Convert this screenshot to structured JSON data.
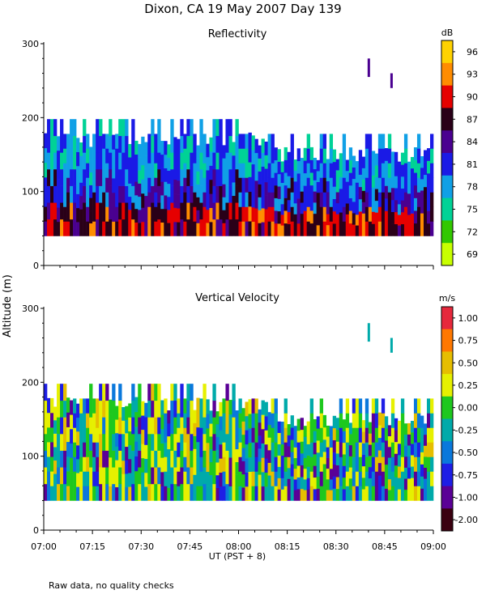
{
  "figure_title": "Dixon, CA 19 May 2007  Day 139",
  "y_axis_label": "Altitude (m)",
  "x_axis_label": "UT   (PST + 8)",
  "footnote": "Raw data, no quality checks",
  "chart_data": [
    {
      "type": "heatmap",
      "title": "Reflectivity",
      "ylabel": "Altitude (m)",
      "xlabel": "UT   (PST + 8)",
      "xlim": [
        "07:00",
        "09:00"
      ],
      "ylim": [
        0,
        300
      ],
      "x_ticks": [
        "07:00",
        "07:15",
        "07:30",
        "07:45",
        "08:00",
        "08:15",
        "08:30",
        "08:45",
        "09:00"
      ],
      "y_ticks": [
        "0",
        "100",
        "200",
        "300"
      ],
      "data_range_altitude_m": [
        40,
        200
      ],
      "colorbar": {
        "unit": "dB",
        "labels": [
          "96",
          "93",
          "90",
          "87",
          "84",
          "81",
          "78",
          "75",
          "72",
          "69"
        ],
        "colors": [
          "#ffd200",
          "#ff8c00",
          "#e60000",
          "#2a0018",
          "#4a0090",
          "#1a1ae6",
          "#10a0e6",
          "#00d296",
          "#32c800",
          "#c8ff00"
        ]
      }
    },
    {
      "type": "heatmap",
      "title": "Vertical Velocity",
      "ylabel": "Altitude (m)",
      "xlabel": "UT   (PST + 8)",
      "xlim": [
        "07:00",
        "09:00"
      ],
      "ylim": [
        0,
        300
      ],
      "x_ticks": [
        "07:00",
        "07:15",
        "07:30",
        "07:45",
        "08:00",
        "08:15",
        "08:30",
        "08:45",
        "09:00"
      ],
      "y_ticks": [
        "0",
        "100",
        "200",
        "300"
      ],
      "data_range_altitude_m": [
        40,
        200
      ],
      "colorbar": {
        "unit": "m/s",
        "labels": [
          "1.00",
          "0.75",
          "0.50",
          "0.25",
          "0.00",
          "-0.25",
          "-0.50",
          "-0.75",
          "-1.00",
          "-2.00"
        ],
        "colors": [
          "#e6283c",
          "#ff7800",
          "#e6be00",
          "#e6f000",
          "#1ec81e",
          "#00aaaa",
          "#0a78dc",
          "#1e1ee6",
          "#5a0096",
          "#3a0010"
        ]
      }
    }
  ]
}
